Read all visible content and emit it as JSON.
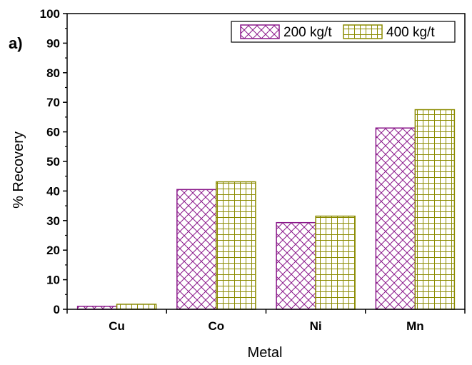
{
  "panel_label": "a)",
  "chart_data": {
    "type": "bar",
    "categories": [
      "Cu",
      "Co",
      "Ni",
      "Mn"
    ],
    "series": [
      {
        "name": "200 kg/t",
        "values": [
          1.0,
          40.5,
          29.3,
          61.3
        ],
        "color": "#8b1a8b",
        "pattern": "crosshatch"
      },
      {
        "name": "400 kg/t",
        "values": [
          1.7,
          43.1,
          31.5,
          67.5
        ],
        "color": "#8b8b00",
        "pattern": "grid"
      }
    ],
    "xlabel": "Metal",
    "ylabel": "% Recovery",
    "ylim": [
      0,
      100
    ],
    "yticks": [
      "0",
      "10",
      "20",
      "30",
      "40",
      "50",
      "60",
      "70",
      "80",
      "90",
      "100"
    ],
    "grid": false,
    "legend": "top-right"
  }
}
